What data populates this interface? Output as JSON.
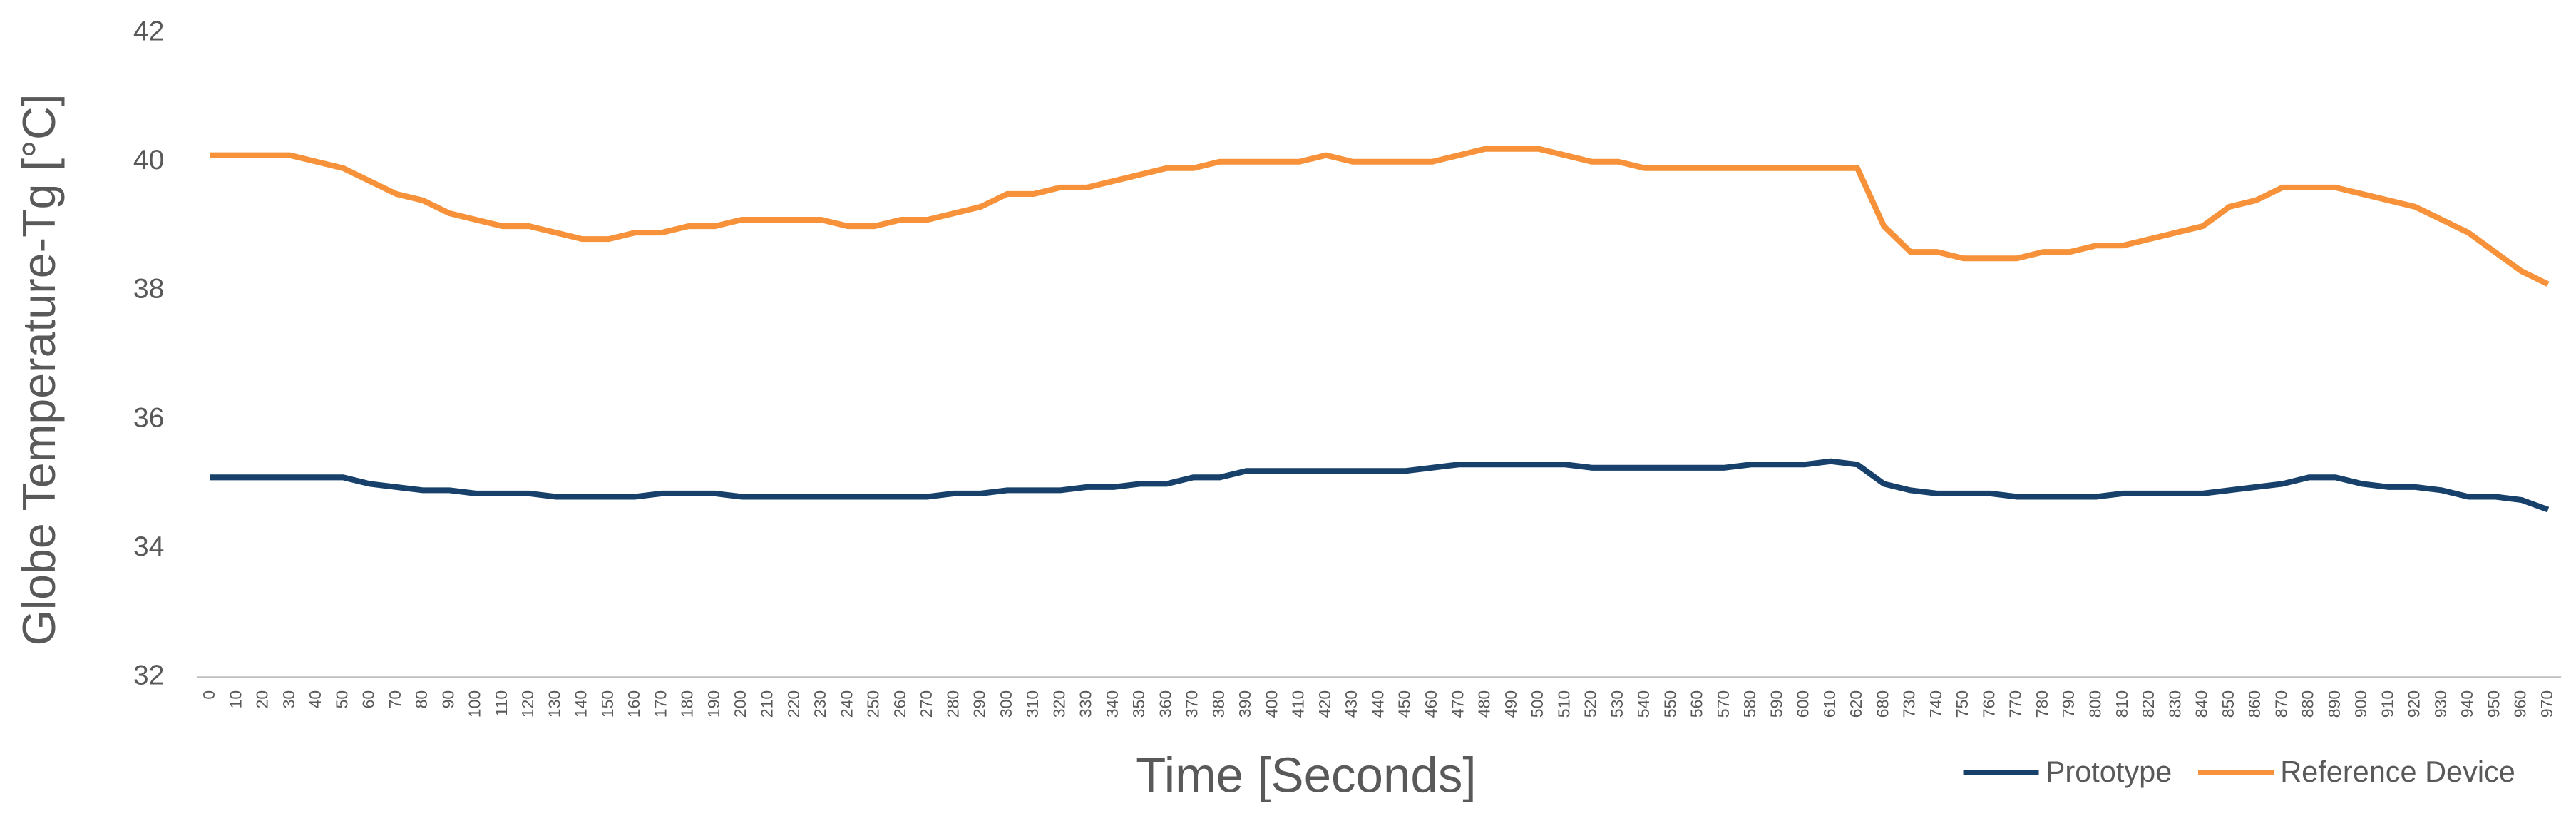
{
  "chart_data": {
    "type": "line",
    "y_label": "Globe Temperature-Tg [°C]",
    "x_label": "Time [Seconds]",
    "categories": [
      "0",
      "10",
      "20",
      "30",
      "40",
      "50",
      "60",
      "70",
      "80",
      "90",
      "100",
      "110",
      "120",
      "130",
      "140",
      "150",
      "160",
      "170",
      "180",
      "190",
      "200",
      "210",
      "220",
      "230",
      "240",
      "250",
      "260",
      "270",
      "280",
      "290",
      "300",
      "310",
      "320",
      "330",
      "340",
      "350",
      "360",
      "370",
      "380",
      "390",
      "400",
      "410",
      "420",
      "430",
      "440",
      "450",
      "460",
      "470",
      "480",
      "490",
      "500",
      "510",
      "520",
      "530",
      "540",
      "550",
      "560",
      "570",
      "580",
      "590",
      "600",
      "610",
      "620",
      "680",
      "730",
      "740",
      "750",
      "760",
      "770",
      "780",
      "790",
      "800",
      "810",
      "820",
      "830",
      "840",
      "850",
      "860",
      "870",
      "880",
      "890",
      "900",
      "910",
      "920",
      "930",
      "940",
      "950",
      "960",
      "970"
    ],
    "series": [
      {
        "name": "Prototype",
        "color": "#17416b",
        "values": [
          35.1,
          35.1,
          35.1,
          35.1,
          35.1,
          35.1,
          35.0,
          34.95,
          34.9,
          34.9,
          34.85,
          34.85,
          34.85,
          34.8,
          34.8,
          34.8,
          34.8,
          34.85,
          34.85,
          34.85,
          34.8,
          34.8,
          34.8,
          34.8,
          34.8,
          34.8,
          34.8,
          34.8,
          34.85,
          34.85,
          34.9,
          34.9,
          34.9,
          34.95,
          34.95,
          35.0,
          35.0,
          35.1,
          35.1,
          35.2,
          35.2,
          35.2,
          35.2,
          35.2,
          35.2,
          35.2,
          35.25,
          35.3,
          35.3,
          35.3,
          35.3,
          35.3,
          35.25,
          35.25,
          35.25,
          35.25,
          35.25,
          35.25,
          35.3,
          35.3,
          35.3,
          35.35,
          35.3,
          35.0,
          34.9,
          34.85,
          34.85,
          34.85,
          34.8,
          34.8,
          34.8,
          34.8,
          34.85,
          34.85,
          34.85,
          34.85,
          34.9,
          34.95,
          35.0,
          35.1,
          35.1,
          35.0,
          34.95,
          34.95,
          34.9,
          34.8,
          34.8,
          34.75,
          34.6
        ]
      },
      {
        "name": "Reference Device",
        "color": "#f7923a",
        "values": [
          40.1,
          40.1,
          40.1,
          40.1,
          40.0,
          39.9,
          39.7,
          39.5,
          39.4,
          39.2,
          39.1,
          39.0,
          39.0,
          38.9,
          38.8,
          38.8,
          38.9,
          38.9,
          39.0,
          39.0,
          39.1,
          39.1,
          39.1,
          39.1,
          39.0,
          39.0,
          39.1,
          39.1,
          39.2,
          39.3,
          39.5,
          39.5,
          39.6,
          39.6,
          39.7,
          39.8,
          39.9,
          39.9,
          40.0,
          40.0,
          40.0,
          40.0,
          40.1,
          40.0,
          40.0,
          40.0,
          40.0,
          40.1,
          40.2,
          40.2,
          40.2,
          40.1,
          40.0,
          40.0,
          39.9,
          39.9,
          39.9,
          39.9,
          39.9,
          39.9,
          39.9,
          39.9,
          39.9,
          39.0,
          38.6,
          38.6,
          38.5,
          38.5,
          38.5,
          38.6,
          38.6,
          38.7,
          38.7,
          38.8,
          38.9,
          39.0,
          39.3,
          39.4,
          39.6,
          39.6,
          39.6,
          39.5,
          39.4,
          39.3,
          39.1,
          38.9,
          38.6,
          38.3,
          38.1
        ]
      }
    ],
    "ylim": [
      32,
      42
    ],
    "yticks": [
      32,
      34,
      36,
      38,
      40,
      42
    ],
    "grid": false,
    "legend": "bottom-right"
  }
}
